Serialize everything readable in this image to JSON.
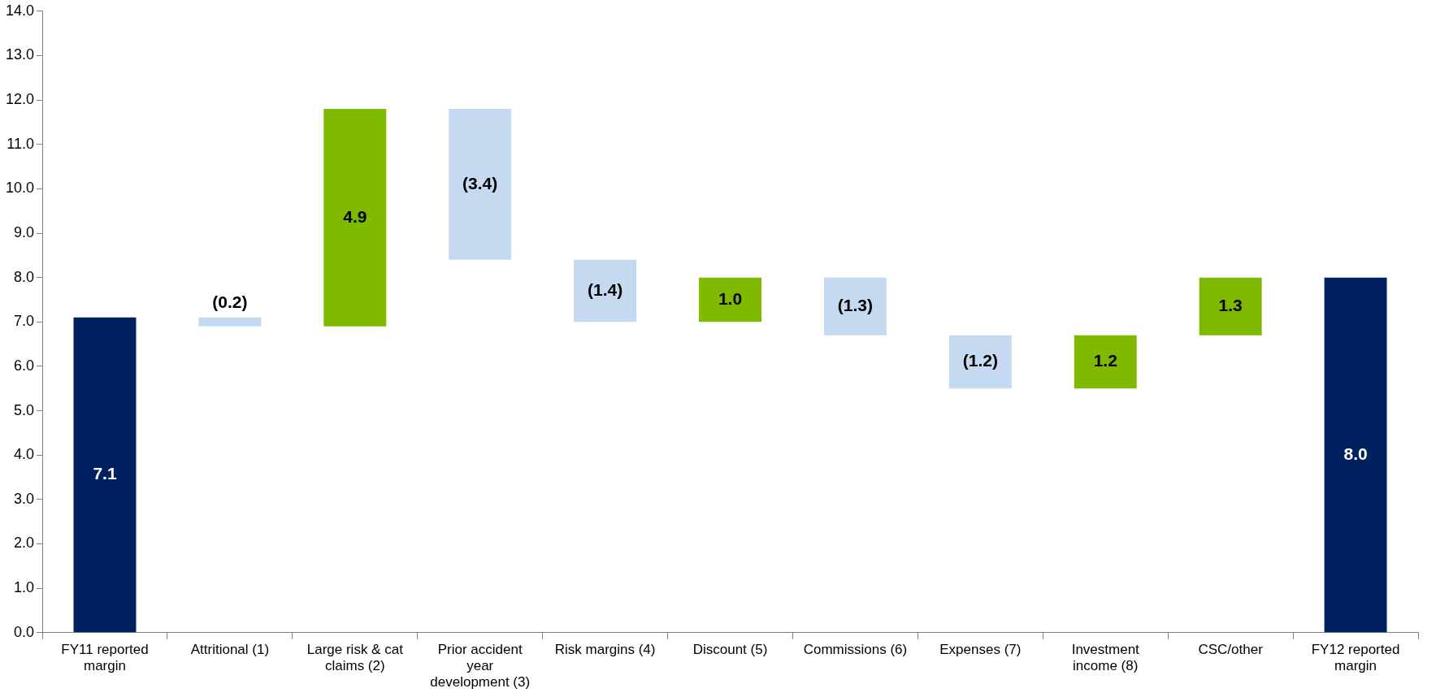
{
  "chart_data": {
    "type": "bar",
    "categories": [
      "FY11 reported margin",
      "Attritional (1)",
      "Large risk & cat claims (2)",
      "Prior accident year development (3)",
      "Risk margins (4)",
      "Discount (5)",
      "Commissions (6)",
      "Expenses (7)",
      "Investment income (8)",
      "CSC/other",
      "FY12 reported margin"
    ],
    "values": [
      7.1,
      -0.2,
      4.9,
      -3.4,
      -1.4,
      1.0,
      -1.3,
      -1.2,
      1.2,
      1.3,
      8.0
    ],
    "base": [
      0,
      7.1,
      6.9,
      11.8,
      8.4,
      7.0,
      8.0,
      6.7,
      5.5,
      6.7,
      0
    ],
    "colors": [
      "#002060",
      "#c5d9f1",
      "#7fba00",
      "#c5d9f1",
      "#c5d9f1",
      "#7fba00",
      "#c5d9f1",
      "#c5d9f1",
      "#7fba00",
      "#7fba00",
      "#002060"
    ],
    "value_labels": [
      "7.1",
      "(0.2)",
      "4.9",
      "(3.4)",
      "(1.4)",
      "1.0",
      "(1.3)",
      "(1.2)",
      "1.2",
      "1.3",
      "8.0"
    ],
    "ylim": [
      0,
      14
    ],
    "yticks": [
      {
        "value": 0,
        "label": "0.0"
      },
      {
        "value": 1,
        "label": "1.0"
      },
      {
        "value": 2,
        "label": "2.0"
      },
      {
        "value": 3,
        "label": "3.0"
      },
      {
        "value": 4,
        "label": "4.0"
      },
      {
        "value": 5,
        "label": "5.0"
      },
      {
        "value": 6,
        "label": "6.0"
      },
      {
        "value": 7,
        "label": "7.0"
      },
      {
        "value": 8,
        "label": "8.0"
      },
      {
        "value": 9,
        "label": "9.0"
      },
      {
        "value": 10,
        "label": "10.0"
      },
      {
        "value": 11,
        "label": "11.0"
      },
      {
        "value": 12,
        "label": "12.0"
      },
      {
        "value": 13,
        "label": "13.0"
      },
      {
        "value": 14,
        "label": "14.0"
      }
    ],
    "grid": false,
    "legend": false
  }
}
